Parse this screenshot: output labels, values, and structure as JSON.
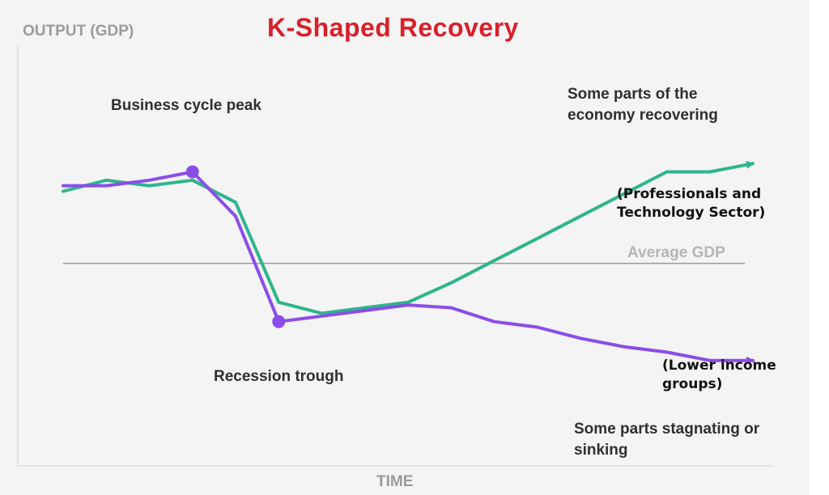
{
  "chart_data": {
    "type": "line",
    "title": "K-Shaped Recovery",
    "ylabel": "OUTPUT (GDP)",
    "xlabel": "TIME",
    "xlim": [
      0,
      16
    ],
    "ylim": [
      0,
      100
    ],
    "reference_line": {
      "label": "Average GDP",
      "value": 45
    },
    "series": [
      {
        "name": "Some parts of the economy recovering",
        "note": "(Professionals and Technology Sector)",
        "color": "#2db58c",
        "x": [
          0,
          1,
          2,
          3,
          4,
          5,
          6,
          7,
          8,
          9,
          10,
          11,
          12,
          13,
          14,
          15,
          16
        ],
        "values": [
          71,
          75,
          73,
          75,
          67,
          31,
          27,
          29,
          31,
          38,
          46,
          54,
          62,
          70,
          78,
          78,
          81
        ]
      },
      {
        "name": "Some parts stagnating or sinking",
        "note": "(Lower income groups)",
        "color": "#8b4de8",
        "x": [
          0,
          1,
          2,
          3,
          4,
          5,
          6,
          7,
          8,
          9,
          10,
          11,
          12,
          13,
          14,
          15,
          16
        ],
        "values": [
          73,
          73,
          75,
          78,
          62,
          24,
          26,
          28,
          30,
          29,
          24,
          22,
          18,
          15,
          13,
          10,
          10
        ]
      }
    ],
    "annotations": [
      {
        "text": "Business cycle peak",
        "series": 1,
        "x": 3,
        "value": 78
      },
      {
        "text": "Recession trough",
        "series": 1,
        "x": 5,
        "value": 24
      }
    ]
  }
}
